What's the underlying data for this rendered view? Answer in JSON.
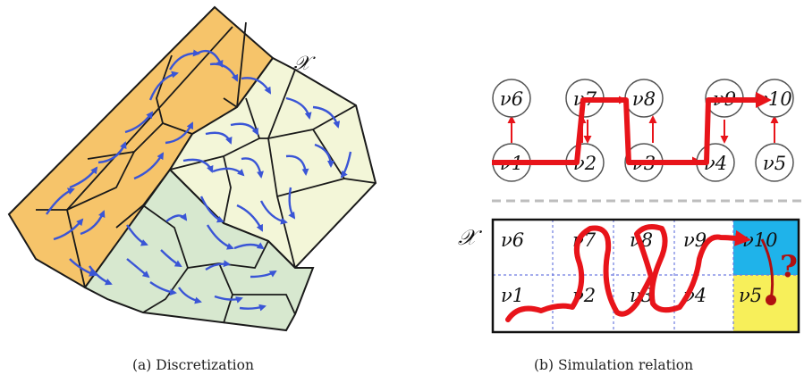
{
  "panel_a": {
    "caption": "(a) Discretization",
    "space_label": "𝒳",
    "colors": {
      "orange": "#f6c46a",
      "light_yellow": "#f3f6d8",
      "green": "#d7e8cf",
      "arrow": "#3a55d6",
      "edge": "#1a1a1a"
    }
  },
  "panel_b": {
    "caption": "(b) Simulation relation",
    "space_label": "𝒳",
    "graph_nodes": [
      "ν6",
      "ν7",
      "ν8",
      "ν9",
      "ν10",
      "ν1",
      "ν2",
      "ν3",
      "ν4",
      "ν5"
    ],
    "cells_top": [
      "ν6",
      "ν7",
      "ν8",
      "ν9",
      "ν10"
    ],
    "cells_bottom": [
      "ν1",
      "ν2",
      "ν3",
      "ν4",
      "ν5"
    ],
    "question_mark": "?",
    "colors": {
      "path": "#e8141a",
      "cyan_cell": "#1fb3ea",
      "yellow_cell": "#f7ef5a",
      "grid": "#6d7be0",
      "divider": "#bdbdbd",
      "dot": "#b01010"
    }
  }
}
